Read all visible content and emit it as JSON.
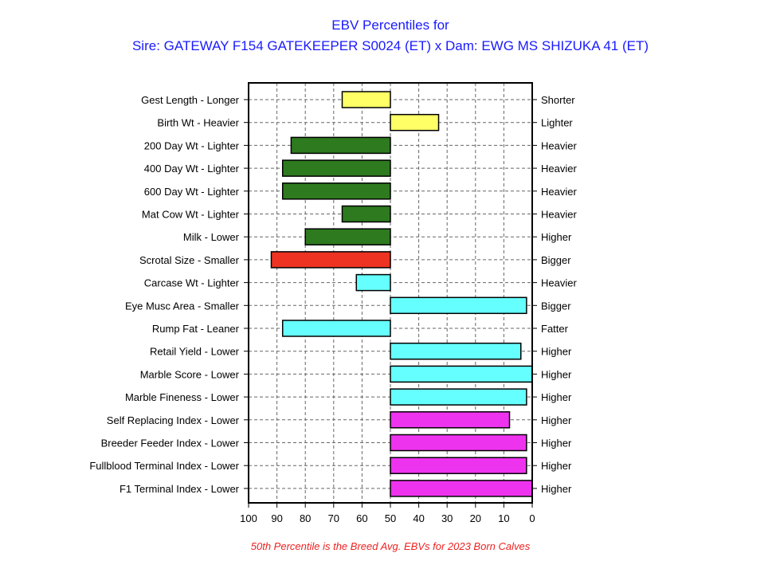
{
  "chart_data": {
    "type": "bar",
    "title": "EBV Percentiles for",
    "subtitle": "Sire: GATEWAY F154 GATEKEEPER S0024 (ET) x Dam: EWG MS SHIZUKA 41 (ET)",
    "footnote": "50th Percentile is the Breed Avg. EBVs for 2023 Born Calves",
    "orientation": "horizontal",
    "xlim": [
      100,
      0
    ],
    "x_direction": "reversed",
    "x_ticks": [
      100,
      90,
      80,
      70,
      60,
      50,
      40,
      30,
      20,
      10,
      0
    ],
    "baseline": 50,
    "grid": true,
    "categories": [
      "Gest Length - Longer",
      "Birth Wt - Heavier",
      "200 Day Wt - Lighter",
      "400 Day Wt - Lighter",
      "600 Day Wt - Lighter",
      "Mat Cow Wt - Lighter",
      "Milk - Lower",
      "Scrotal Size - Smaller",
      "Carcase Wt - Lighter",
      "Eye Musc Area - Smaller",
      "Rump Fat - Leaner",
      "Retail Yield - Lower",
      "Marble Score - Lower",
      "Marble Fineness - Lower",
      "Self Replacing Index - Lower",
      "Breeder Feeder Index - Lower",
      "Fullblood Terminal Index - Lower",
      "F1 Terminal Index - Lower"
    ],
    "right_labels": [
      "Shorter",
      "Lighter",
      "Heavier",
      "Heavier",
      "Heavier",
      "Heavier",
      "Higher",
      "Bigger",
      "Heavier",
      "Bigger",
      "Fatter",
      "Higher",
      "Higher",
      "Higher",
      "Higher",
      "Higher",
      "Higher",
      "Higher"
    ],
    "values": [
      67,
      33,
      85,
      88,
      88,
      67,
      80,
      92,
      62,
      2,
      88,
      4,
      0,
      2,
      8,
      2,
      2,
      0
    ],
    "colors": [
      "#ffff66",
      "#ffff66",
      "#2e7a1f",
      "#2e7a1f",
      "#2e7a1f",
      "#2e7a1f",
      "#2e7a1f",
      "#ee3322",
      "#66ffff",
      "#66ffff",
      "#66ffff",
      "#66ffff",
      "#66ffff",
      "#66ffff",
      "#ee33ee",
      "#ee33ee",
      "#ee33ee",
      "#ee33ee"
    ],
    "title_color": "#1a1aff",
    "footnote_color": "#ee2222"
  }
}
